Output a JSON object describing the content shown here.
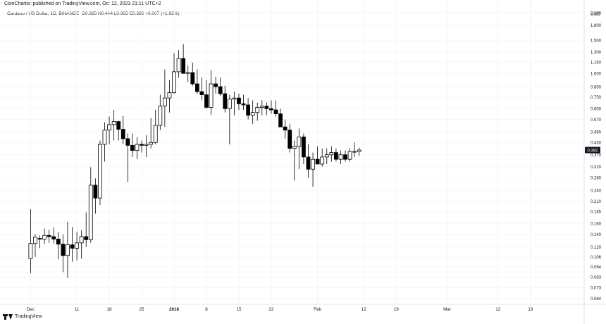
{
  "header": {
    "published": "CoinChartist published on TradingView.com, Oct 12, 2023 21:11 UTC+2"
  },
  "legend": {
    "symbol": "Cardano / US Dollar, 1D, BINANCE",
    "ohlc": "O0.385 H0.404 L0.365 C0.392 +0.007 (+1.92%)"
  },
  "footer": {
    "brand": "TradingView"
  },
  "chart_data": {
    "type": "candlestick",
    "title": "Cardano / US Dollar, 1D, BINANCE",
    "y_scale": "log",
    "y_currency": "USD",
    "ylim": [
      0.06,
      2.25
    ],
    "y_ticks": [
      "2.100",
      "1.800",
      "1.500",
      "1.300",
      "1.150",
      "1.000",
      "0.850",
      "0.750",
      "0.650",
      "0.570",
      "0.490",
      "0.430",
      "0.370",
      "0.320",
      "0.280",
      "0.240",
      "0.210",
      "0.185",
      "0.160",
      "0.140",
      "0.120",
      "0.106",
      "0.094",
      "0.083",
      "0.073",
      "0.064"
    ],
    "x_ticks": [
      {
        "label": "Dec",
        "day": 0,
        "bold": false
      },
      {
        "label": "11",
        "day": 10,
        "bold": false
      },
      {
        "label": "18",
        "day": 17,
        "bold": false
      },
      {
        "label": "25",
        "day": 24,
        "bold": false
      },
      {
        "label": "2018",
        "day": 31,
        "bold": true
      },
      {
        "label": "8",
        "day": 38,
        "bold": false
      },
      {
        "label": "15",
        "day": 45,
        "bold": false
      },
      {
        "label": "22",
        "day": 52,
        "bold": false
      },
      {
        "label": "Feb",
        "day": 62,
        "bold": false
      },
      {
        "label": "12",
        "day": 72,
        "bold": false
      },
      {
        "label": "19",
        "day": 79,
        "bold": false
      },
      {
        "label": "Mar",
        "day": 90,
        "bold": false
      },
      {
        "label": "12",
        "day": 101,
        "bold": false
      },
      {
        "label": "19",
        "day": 108,
        "bold": false
      }
    ],
    "x_range_days": [
      -6,
      119
    ],
    "last_price": "0.392",
    "candles": [
      [
        0.104,
        0.19,
        0.087,
        0.125
      ],
      [
        0.125,
        0.14,
        0.106,
        0.135
      ],
      [
        0.133,
        0.138,
        0.118,
        0.132
      ],
      [
        0.132,
        0.15,
        0.124,
        0.138
      ],
      [
        0.138,
        0.148,
        0.126,
        0.136
      ],
      [
        0.136,
        0.152,
        0.125,
        0.132
      ],
      [
        0.132,
        0.144,
        0.103,
        0.124
      ],
      [
        0.124,
        0.14,
        0.088,
        0.108
      ],
      [
        0.108,
        0.163,
        0.082,
        0.123
      ],
      [
        0.123,
        0.153,
        0.1,
        0.118
      ],
      [
        0.118,
        0.144,
        0.102,
        0.126
      ],
      [
        0.126,
        0.147,
        0.104,
        0.136
      ],
      [
        0.136,
        0.183,
        0.12,
        0.131
      ],
      [
        0.131,
        0.318,
        0.126,
        0.255
      ],
      [
        0.255,
        0.277,
        0.18,
        0.218
      ],
      [
        0.218,
        0.44,
        0.2,
        0.42
      ],
      [
        0.42,
        0.55,
        0.34,
        0.5
      ],
      [
        0.5,
        0.59,
        0.42,
        0.535
      ],
      [
        0.535,
        0.64,
        0.44,
        0.555
      ],
      [
        0.555,
        0.56,
        0.44,
        0.505
      ],
      [
        0.505,
        0.595,
        0.42,
        0.45
      ],
      [
        0.45,
        0.48,
        0.265,
        0.415
      ],
      [
        0.415,
        0.48,
        0.36,
        0.39
      ],
      [
        0.39,
        0.46,
        0.35,
        0.42
      ],
      [
        0.42,
        0.44,
        0.38,
        0.415
      ],
      [
        0.415,
        0.47,
        0.36,
        0.42
      ],
      [
        0.42,
        0.58,
        0.4,
        0.43
      ],
      [
        0.43,
        0.64,
        0.42,
        0.53
      ],
      [
        0.53,
        0.77,
        0.5,
        0.67
      ],
      [
        0.67,
        1.05,
        0.52,
        0.74
      ],
      [
        0.74,
        0.92,
        0.62,
        0.79
      ],
      [
        0.79,
        1.28,
        0.78,
        1.02
      ],
      [
        1.02,
        1.33,
        0.95,
        1.2
      ],
      [
        1.2,
        1.43,
        1.0,
        1.0
      ],
      [
        1.0,
        1.1,
        0.9,
        1.01
      ],
      [
        1.01,
        1.14,
        0.86,
        0.88
      ],
      [
        0.88,
        1.05,
        0.78,
        0.8
      ],
      [
        0.8,
        0.95,
        0.72,
        0.77
      ],
      [
        0.77,
        0.92,
        0.65,
        0.66
      ],
      [
        0.66,
        1.04,
        0.6,
        0.88
      ],
      [
        0.88,
        0.96,
        0.78,
        0.85
      ],
      [
        0.85,
        0.95,
        0.76,
        0.78
      ],
      [
        0.78,
        0.86,
        0.62,
        0.65
      ],
      [
        0.65,
        0.77,
        0.42,
        0.73
      ],
      [
        0.73,
        0.8,
        0.6,
        0.74
      ],
      [
        0.74,
        0.78,
        0.64,
        0.69
      ],
      [
        0.69,
        0.77,
        0.64,
        0.68
      ],
      [
        0.68,
        0.74,
        0.57,
        0.6
      ],
      [
        0.6,
        0.72,
        0.54,
        0.62
      ],
      [
        0.62,
        0.7,
        0.56,
        0.66
      ],
      [
        0.66,
        0.72,
        0.6,
        0.67
      ],
      [
        0.67,
        0.7,
        0.6,
        0.65
      ],
      [
        0.65,
        0.72,
        0.61,
        0.64
      ],
      [
        0.64,
        0.72,
        0.59,
        0.61
      ],
      [
        0.61,
        0.65,
        0.52,
        0.52
      ],
      [
        0.52,
        0.57,
        0.45,
        0.5
      ],
      [
        0.5,
        0.54,
        0.38,
        0.4
      ],
      [
        0.4,
        0.44,
        0.27,
        0.41
      ],
      [
        0.41,
        0.51,
        0.31,
        0.46
      ],
      [
        0.46,
        0.48,
        0.33,
        0.36
      ],
      [
        0.36,
        0.42,
        0.28,
        0.31
      ],
      [
        0.31,
        0.38,
        0.25,
        0.35
      ],
      [
        0.35,
        0.41,
        0.33,
        0.33
      ],
      [
        0.33,
        0.4,
        0.32,
        0.36
      ],
      [
        0.36,
        0.4,
        0.33,
        0.37
      ],
      [
        0.37,
        0.41,
        0.34,
        0.38
      ],
      [
        0.38,
        0.4,
        0.34,
        0.35
      ],
      [
        0.35,
        0.39,
        0.33,
        0.37
      ],
      [
        0.37,
        0.39,
        0.34,
        0.35
      ],
      [
        0.35,
        0.4,
        0.34,
        0.385
      ],
      [
        0.385,
        0.43,
        0.36,
        0.385
      ],
      [
        0.385,
        0.404,
        0.365,
        0.392
      ]
    ]
  }
}
